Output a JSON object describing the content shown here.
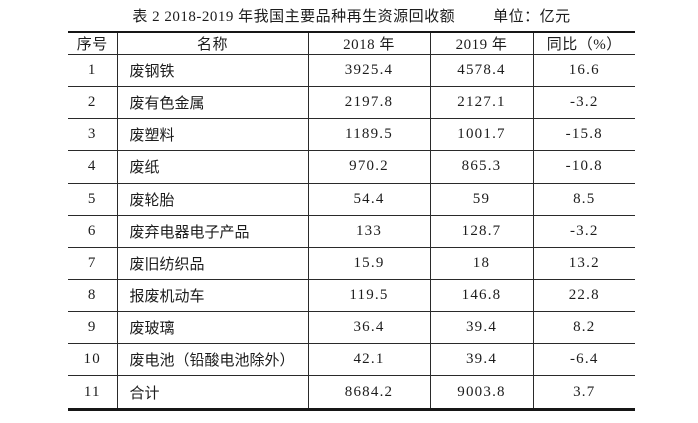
{
  "caption": {
    "title": "表 2  2018-2019 年我国主要品种再生资源回收额",
    "unit": "单位：亿元"
  },
  "table": {
    "headers": [
      "序号",
      "名称",
      "2018 年",
      "2019 年",
      "同比（%）"
    ],
    "column_names": [
      "index",
      "name",
      "value-2018",
      "value-2019",
      "yoy-percent"
    ],
    "rows": [
      [
        "1",
        "废钢铁",
        "3925.4",
        "4578.4",
        "16.6"
      ],
      [
        "2",
        "废有色金属",
        "2197.8",
        "2127.1",
        "-3.2"
      ],
      [
        "3",
        "废塑料",
        "1189.5",
        "1001.7",
        "-15.8"
      ],
      [
        "4",
        "废纸",
        "970.2",
        "865.3",
        "-10.8"
      ],
      [
        "5",
        "废轮胎",
        "54.4",
        "59",
        "8.5"
      ],
      [
        "6",
        "废弃电器电子产品",
        "133",
        "128.7",
        "-3.2"
      ],
      [
        "7",
        "废旧纺织品",
        "15.9",
        "18",
        "13.2"
      ],
      [
        "8",
        "报废机动车",
        "119.5",
        "146.8",
        "22.8"
      ],
      [
        "9",
        "废玻璃",
        "36.4",
        "39.4",
        "8.2"
      ],
      [
        "10",
        "废电池（铅酸电池除外）",
        "42.1",
        "39.4",
        "-6.4"
      ],
      [
        "11",
        "合计",
        "8684.2",
        "9003.8",
        "3.7"
      ]
    ]
  }
}
